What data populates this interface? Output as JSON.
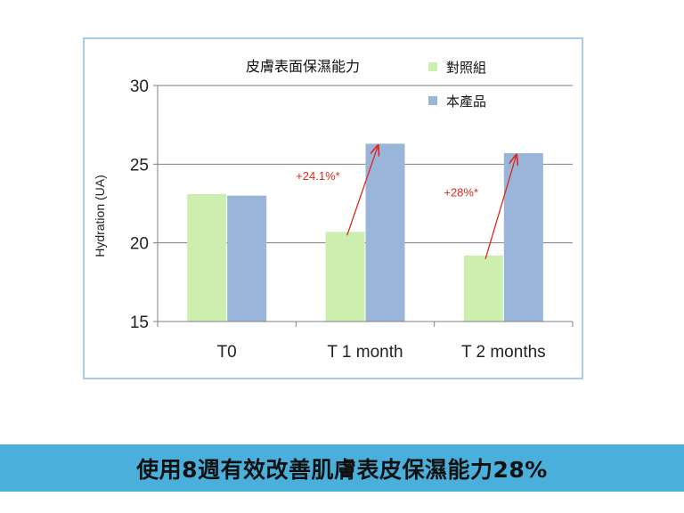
{
  "chart_data": {
    "type": "bar",
    "title": "皮膚表面保濕能力",
    "ylabel": "Hydration (UA)",
    "xlabel": "",
    "categories": [
      "T0",
      "T 1 month",
      "T 2 months"
    ],
    "ylim": [
      15,
      30
    ],
    "yticks": [
      "15",
      "20",
      "25",
      "30"
    ],
    "grid": true,
    "legend_position": "top-right",
    "series": [
      {
        "name": "對照組",
        "color": "#ccefb0",
        "values": [
          23.1,
          20.7,
          19.2
        ]
      },
      {
        "name": "本產品",
        "color": "#99b5d9",
        "values": [
          23.0,
          26.3,
          25.7
        ]
      }
    ],
    "annotations": [
      {
        "text": "+24.1%*",
        "category": "T 1 month",
        "color": "#e0281c"
      },
      {
        "text": "+28%*",
        "category": "T 2 months",
        "color": "#e0281c"
      }
    ]
  },
  "caption": "使用8週有效改善肌膚表皮保濕能力28%"
}
